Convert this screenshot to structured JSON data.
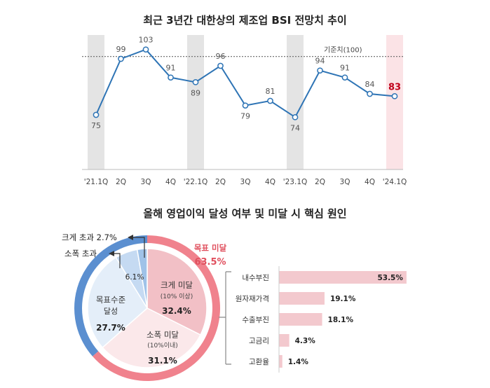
{
  "chart_data": [
    {
      "type": "line",
      "title": "최근 3년간 대한상의 제조업 BSI 전망치 추이",
      "categories": [
        "'21.1Q",
        "2Q",
        "3Q",
        "4Q",
        "'22.1Q",
        "2Q",
        "3Q",
        "4Q",
        "'23.1Q",
        "2Q",
        "3Q",
        "4Q",
        "'24.1Q"
      ],
      "series": [
        {
          "values": [
            75,
            99,
            103,
            91,
            89,
            96,
            79,
            81,
            74,
            94,
            91,
            84,
            83
          ]
        }
      ],
      "highlight_last_label_color": "#c0001a",
      "line_color": "#2e74b5",
      "reference_line": {
        "value": 100,
        "label": "기준치(100)"
      },
      "shaded_categories": [
        "'21.1Q",
        "'22.1Q",
        "'23.1Q"
      ],
      "highlighted_category": "'24.1Q",
      "shade_color": "#e4e4e4",
      "highlight_color": "#fbe3e6",
      "ylim": [
        55,
        110
      ],
      "grid": false
    },
    {
      "type": "pie",
      "title": "올해 영업이익 달성 여부 및 미달 시 핵심 원인",
      "slices": [
        {
          "label": "크게 미달",
          "sub": "(10% 이상)",
          "value": 32.4,
          "value_label": "32.4%",
          "color": "#f2c0c6"
        },
        {
          "label": "소폭 미달",
          "sub": "(10%이내)",
          "value": 31.1,
          "value_label": "31.1%",
          "color": "#fbe8ea"
        },
        {
          "label": "목표수준",
          "sub": "달성",
          "value": 27.7,
          "value_label": "27.7%",
          "color": "#e4eef9"
        },
        {
          "label": "소폭 초과",
          "sub": "",
          "value": 6.1,
          "value_label": "6.1%",
          "color": "#c5daf2"
        },
        {
          "label": "크게 초과",
          "sub": "",
          "value": 2.7,
          "value_label": "2.7%",
          "color": "#9fc2e8"
        }
      ],
      "outer_ring": [
        {
          "label": "목표 미달",
          "value_label": "63.5%",
          "color": "#f0828d"
        },
        {
          "label": "",
          "value_label": "",
          "color": "#5b8fd0"
        }
      ]
    },
    {
      "type": "bar",
      "orientation": "horizontal",
      "categories": [
        "내수부진",
        "원자재가격",
        "수출부진",
        "고금리",
        "고환율"
      ],
      "values": [
        53.5,
        19.1,
        18.1,
        4.3,
        1.4
      ],
      "value_labels": [
        "53.5%",
        "19.1%",
        "18.1%",
        "4.3%",
        "1.4%"
      ],
      "bar_color": "#f3c9ce",
      "xlim": [
        0,
        55
      ]
    }
  ]
}
